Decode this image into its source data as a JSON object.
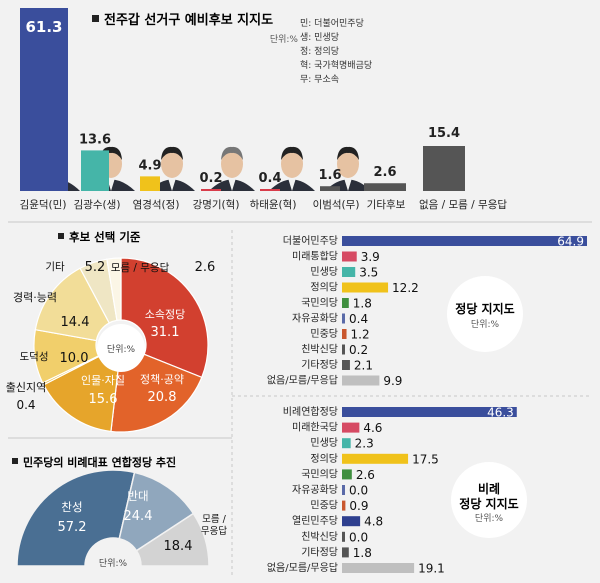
{
  "chart_data": [
    {
      "type": "bar",
      "title": "전주갑 선거구 예비후보 지지도",
      "unit": "단위:%",
      "legend": [
        {
          "key": "민",
          "text": "더불어민주당"
        },
        {
          "key": "생",
          "text": "민생당"
        },
        {
          "key": "정",
          "text": "정의당"
        },
        {
          "key": "혁",
          "text": "국가혁명배금당"
        },
        {
          "key": "무",
          "text": "무소속"
        }
      ],
      "categories": [
        "김윤덕(민)",
        "김광수(생)",
        "염경석(정)",
        "강명기(혁)",
        "하태윤(혁)",
        "이범석(무)",
        "기타후보",
        "없음 / 모름 / 무응답"
      ],
      "values": [
        61.3,
        13.6,
        4.9,
        0.2,
        0.4,
        1.6,
        2.6,
        15.4
      ],
      "value_labels": [
        "61.3",
        "13.6",
        "4.9",
        "0.2",
        "0.4",
        "1.6",
        "2.6",
        "15.4"
      ],
      "colors": [
        "#3a4e9c",
        "#45b5a8",
        "#f0c21b",
        "#d83c4a",
        "#d83c4a",
        "#555555",
        "#555555",
        "#555555"
      ]
    },
    {
      "type": "pie",
      "title": "후보 선택 기준",
      "unit": "단위:%",
      "categories": [
        "소속정당",
        "정책·공약",
        "인물·자질",
        "출신지역",
        "도덕성",
        "경력·능력",
        "기타",
        "모름 / 무응답"
      ],
      "values": [
        31.1,
        20.8,
        15.6,
        0.4,
        10.0,
        14.4,
        5.2,
        2.6
      ],
      "value_labels": [
        "31.1",
        "20.8",
        "15.6",
        "0.4",
        "10.0",
        "14.4",
        "5.2",
        "2.6"
      ],
      "colors": [
        "#d2402f",
        "#e2632a",
        "#e6a52b",
        "#eec34a",
        "#f1cf6b",
        "#f2dd98",
        "#efe6c4",
        "#fbf6e6"
      ]
    },
    {
      "type": "pie",
      "title": "민주당의 비례대표 연합정당 추진",
      "unit": "단위:%",
      "categories": [
        "찬성",
        "반대",
        "모름 / 무응답"
      ],
      "values": [
        57.2,
        24.4,
        18.4
      ],
      "value_labels": [
        "57.2",
        "24.4",
        "18.4"
      ],
      "colors": [
        "#4a6f93",
        "#90a7bd",
        "#d3d3d3"
      ]
    },
    {
      "type": "bar",
      "orientation": "horizontal",
      "title": "정당 지지도",
      "unit": "단위:%",
      "categories": [
        "더불어민주당",
        "미래통합당",
        "민생당",
        "정의당",
        "국민의당",
        "자유공화당",
        "민중당",
        "친박신당",
        "기타정당",
        "없음/모름/무응답"
      ],
      "values": [
        64.9,
        3.9,
        3.5,
        12.2,
        1.8,
        0.4,
        1.2,
        0.2,
        2.1,
        9.9
      ],
      "value_labels": [
        "64.9",
        "3.9",
        "3.5",
        "12.2",
        "1.8",
        "0.4",
        "1.2",
        "0.2",
        "2.1",
        "9.9"
      ],
      "colors": [
        "#3a4e9c",
        "#d64a63",
        "#45b5a8",
        "#f0c21b",
        "#3f8f3f",
        "#5a6aa8",
        "#c9572e",
        "#555555",
        "#555555",
        "#bfbfbf"
      ]
    },
    {
      "type": "bar",
      "orientation": "horizontal",
      "title": "비례정당 지지도",
      "unit": "단위:%",
      "categories": [
        "비례연합정당",
        "미래한국당",
        "민생당",
        "정의당",
        "국민의당",
        "자유공화당",
        "민중당",
        "열린민주당",
        "친박신당",
        "기타정당",
        "없음/모름/무응답"
      ],
      "values": [
        46.3,
        4.6,
        2.3,
        17.5,
        2.6,
        0.0,
        0.9,
        4.8,
        0.0,
        1.8,
        19.1
      ],
      "value_labels": [
        "46.3",
        "4.6",
        "2.3",
        "17.5",
        "2.6",
        "0.0",
        "0.9",
        "4.8",
        "0.0",
        "1.8",
        "19.1"
      ],
      "colors": [
        "#3a4e9c",
        "#d64a63",
        "#45b5a8",
        "#f0c21b",
        "#3f8f3f",
        "#5a6aa8",
        "#c9572e",
        "#2e3f8f",
        "#555555",
        "#555555",
        "#bfbfbf"
      ]
    }
  ]
}
